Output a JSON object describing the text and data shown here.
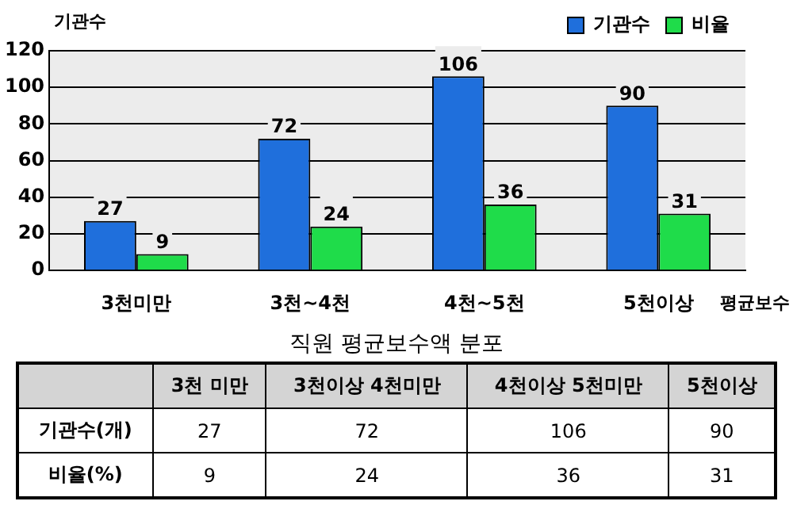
{
  "chart_data": {
    "type": "bar",
    "ylabel": "기관수",
    "xlabel": "평균보수",
    "categories": [
      "3천미만",
      "3천~4천",
      "4천~5천",
      "5천이상"
    ],
    "series": [
      {
        "name": "기관수",
        "color": "#1f6fdc",
        "values": [
          27,
          72,
          106,
          90
        ],
        "value_labels": [
          "27",
          "72",
          "106",
          "90"
        ]
      },
      {
        "name": "비율",
        "color": "#1fdc4a",
        "values": [
          9,
          24,
          36,
          31
        ],
        "value_labels": [
          "9",
          "24",
          "36",
          "31"
        ]
      }
    ],
    "ylim": [
      0,
      120
    ],
    "yticks": [
      0,
      20,
      40,
      60,
      80,
      100,
      120
    ],
    "grid": "y",
    "legend": "top right",
    "annotations": [
      "직원 평균보수액 분포",
      "3천 미만",
      "3천이상 4천미만",
      "4천이상 5천미만",
      "5천이상",
      "기관수(개)",
      "27",
      "72",
      "106",
      "90",
      "비율(%)",
      "9",
      "24",
      "36",
      "31"
    ]
  }
}
